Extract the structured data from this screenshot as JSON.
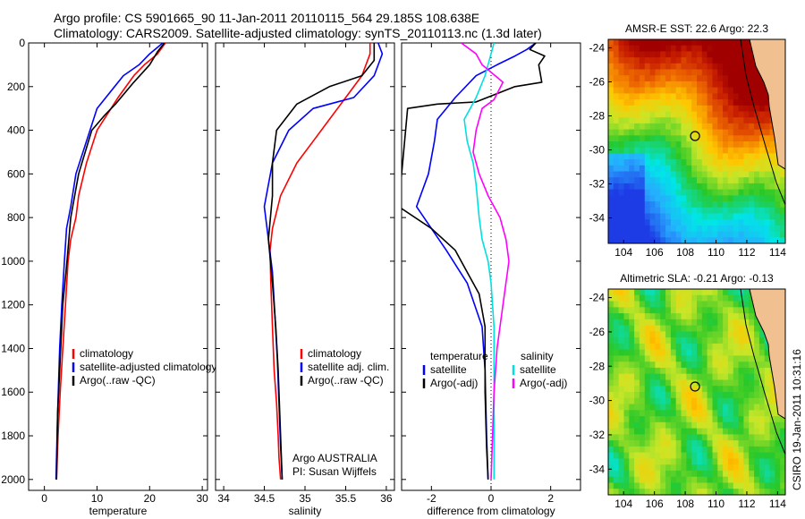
{
  "titles": {
    "line1": "Argo profile: CS 5901665_90 11-Jan-2011 20110115_564 29.185S 108.638E",
    "line2": "Climatology: CARS2009. Satellite-adjusted climatology: synTS_20110113.nc (1.3d later)",
    "stamp": "CSIRO 19-Jan-2011 10:31:16"
  },
  "colors": {
    "climatology": "#ff0000",
    "satellite": "#0000ff",
    "argo": "#000000",
    "sat_salinity": "#00e0e0",
    "argo_salinity": "#ff00ff"
  },
  "chart_data": [
    {
      "type": "line",
      "xlabel": "temperature",
      "ylabel": "",
      "xlim": [
        -3,
        31
      ],
      "ylim": [
        2050,
        0
      ],
      "xticks": [
        "0",
        "10",
        "20",
        "30"
      ],
      "yticks": [
        "0",
        "200",
        "400",
        "600",
        "800",
        "1000",
        "1200",
        "1400",
        "1600",
        "1800",
        "2000"
      ],
      "legend_position": "lower-right",
      "series": [
        {
          "name": "climatology",
          "color": "red",
          "x": [
            23,
            21.5,
            19,
            17,
            14,
            10,
            8,
            6.5,
            6,
            5.5,
            5,
            4.5,
            4,
            3.5,
            3,
            2.6,
            2.3
          ],
          "y": [
            0,
            50,
            100,
            150,
            250,
            400,
            550,
            700,
            800,
            850,
            900,
            1000,
            1200,
            1400,
            1600,
            1800,
            2000
          ]
        },
        {
          "name": "satellite-adjusted climatology",
          "color": "blue",
          "x": [
            22.5,
            20,
            18,
            15,
            10,
            8,
            6,
            5,
            4.2,
            3.8,
            3.3,
            2.9,
            2.5,
            2.2
          ],
          "y": [
            0,
            50,
            100,
            150,
            300,
            450,
            600,
            750,
            850,
            1000,
            1200,
            1400,
            1700,
            2000
          ]
        },
        {
          "name": "Argo(..raw -QC)",
          "color": "black",
          "x": [
            22.8,
            21.5,
            20,
            17,
            13.5,
            11.5,
            9,
            6.5,
            5,
            4.3,
            3.5,
            3,
            2.5,
            2.3
          ],
          "y": [
            0,
            40,
            100,
            180,
            280,
            330,
            400,
            600,
            800,
            1000,
            1200,
            1450,
            1700,
            2000
          ]
        }
      ]
    },
    {
      "type": "line",
      "xlabel": "salinity",
      "ylabel": "",
      "xlim": [
        33.9,
        36.1
      ],
      "ylim": [
        2050,
        0
      ],
      "xticks": [
        "34",
        "34.5",
        "35",
        "35.5",
        "36"
      ],
      "legend_position": "lower-right",
      "annotations": [
        "Argo AUSTRALIA",
        "PI: Susan Wijffels"
      ],
      "series": [
        {
          "name": "climatology",
          "color": "red",
          "x": [
            35.8,
            35.8,
            35.7,
            35.5,
            35.3,
            35.1,
            34.9,
            34.7,
            34.6,
            34.57,
            34.58,
            34.6,
            34.62,
            34.65,
            34.67,
            34.68,
            34.7
          ],
          "y": [
            0,
            50,
            150,
            250,
            350,
            450,
            550,
            700,
            850,
            950,
            1100,
            1300,
            1500,
            1650,
            1800,
            1900,
            2000
          ]
        },
        {
          "name": "satellite adj. clim.",
          "color": "blue",
          "x": [
            35.9,
            35.95,
            35.85,
            35.6,
            35.1,
            34.8,
            34.6,
            34.5,
            34.55,
            34.6,
            34.63,
            34.66,
            34.68,
            34.7,
            34.72
          ],
          "y": [
            0,
            50,
            150,
            250,
            300,
            400,
            550,
            750,
            900,
            1050,
            1250,
            1450,
            1650,
            1850,
            2000
          ]
        },
        {
          "name": "Argo(..raw -QC)",
          "color": "black",
          "x": [
            35.85,
            35.85,
            35.7,
            35.3,
            34.9,
            34.65,
            34.6,
            34.6,
            34.55,
            34.6,
            34.64,
            34.67,
            34.69,
            34.71,
            34.72
          ],
          "y": [
            0,
            80,
            150,
            200,
            280,
            400,
            550,
            700,
            900,
            1100,
            1300,
            1500,
            1700,
            1900,
            2000
          ]
        }
      ]
    },
    {
      "type": "line",
      "xlabel": "difference from climatology",
      "ylabel": "",
      "xlim": [
        -3,
        3
      ],
      "ylim": [
        2050,
        0
      ],
      "xticks": [
        "-2",
        "0",
        "2"
      ],
      "legend_position": "lower-center",
      "legend": [
        "temperature",
        "salinity"
      ],
      "series": [
        {
          "name": "satellite",
          "group": "temperature",
          "color": "blue",
          "x": [
            1.5,
            1.2,
            0.8,
            0.2,
            -0.5,
            -1.2,
            -1.5,
            -1.8,
            -1.9,
            -2.1,
            -2.5,
            -2.0,
            -1.5,
            -0.8,
            -0.3,
            -0.2,
            -0.15,
            -0.1
          ],
          "y": [
            0,
            30,
            60,
            100,
            150,
            250,
            300,
            350,
            450,
            600,
            750,
            850,
            950,
            1100,
            1300,
            1500,
            1800,
            2000
          ]
        },
        {
          "name": "Argo(-adj)",
          "group": "temperature",
          "color": "black",
          "x": [
            1.5,
            1.3,
            1.8,
            1.6,
            1.7,
            0.8,
            -0.5,
            -1.8,
            -2.8,
            -3.1,
            -2.0,
            -1.2,
            -0.8,
            -0.4,
            -0.2,
            -0.2,
            -0.15,
            -0.1
          ],
          "y": [
            0,
            30,
            60,
            100,
            180,
            200,
            270,
            280,
            300,
            750,
            850,
            950,
            1050,
            1150,
            1300,
            1600,
            1850,
            2000
          ]
        },
        {
          "name": "satellite",
          "group": "salinity",
          "color": "cyan",
          "x": [
            0.1,
            0.0,
            -0.2,
            -0.5,
            -0.7,
            -0.9,
            -0.8,
            -0.6,
            -0.5,
            -0.4,
            -0.3,
            -0.1,
            0.0,
            0.1,
            0.1,
            0.1,
            0.1
          ],
          "y": [
            0,
            50,
            150,
            250,
            300,
            350,
            450,
            550,
            650,
            800,
            900,
            1000,
            1100,
            1300,
            1600,
            1800,
            2000
          ]
        },
        {
          "name": "Argo(-adj)",
          "group": "salinity",
          "color": "magenta",
          "x": [
            -1.0,
            -0.5,
            -0.3,
            0.4,
            0.1,
            -0.3,
            -0.5,
            -0.6,
            -0.4,
            -0.1,
            0.3,
            0.5,
            0.6,
            0.4,
            0.2,
            0.1,
            0.05,
            0.0
          ],
          "y": [
            0,
            50,
            100,
            180,
            260,
            300,
            400,
            500,
            600,
            700,
            800,
            900,
            1000,
            1200,
            1400,
            1600,
            1800,
            2000
          ]
        }
      ]
    },
    {
      "type": "heatmap",
      "title": "AMSR-E SST: 22.6 Argo: 22.3",
      "xlim": [
        103,
        114.5
      ],
      "ylim": [
        -35.5,
        -23.5
      ],
      "xticks": [
        "104",
        "106",
        "108",
        "110",
        "112",
        "114"
      ],
      "yticks": [
        "-24",
        "-26",
        "-28",
        "-30",
        "-32",
        "-34"
      ],
      "marker": {
        "lon": 108.638,
        "lat": -29.185
      }
    },
    {
      "type": "heatmap",
      "title": "Altimetric SLA: -0.21 Argo: -0.13",
      "xlim": [
        103,
        114.5
      ],
      "ylim": [
        -35.5,
        -23.5
      ],
      "xticks": [
        "104",
        "106",
        "108",
        "110",
        "112",
        "114"
      ],
      "yticks": [
        "-24",
        "-26",
        "-28",
        "-30",
        "-32",
        "-34"
      ],
      "marker": {
        "lon": 108.638,
        "lat": -29.185
      }
    }
  ]
}
